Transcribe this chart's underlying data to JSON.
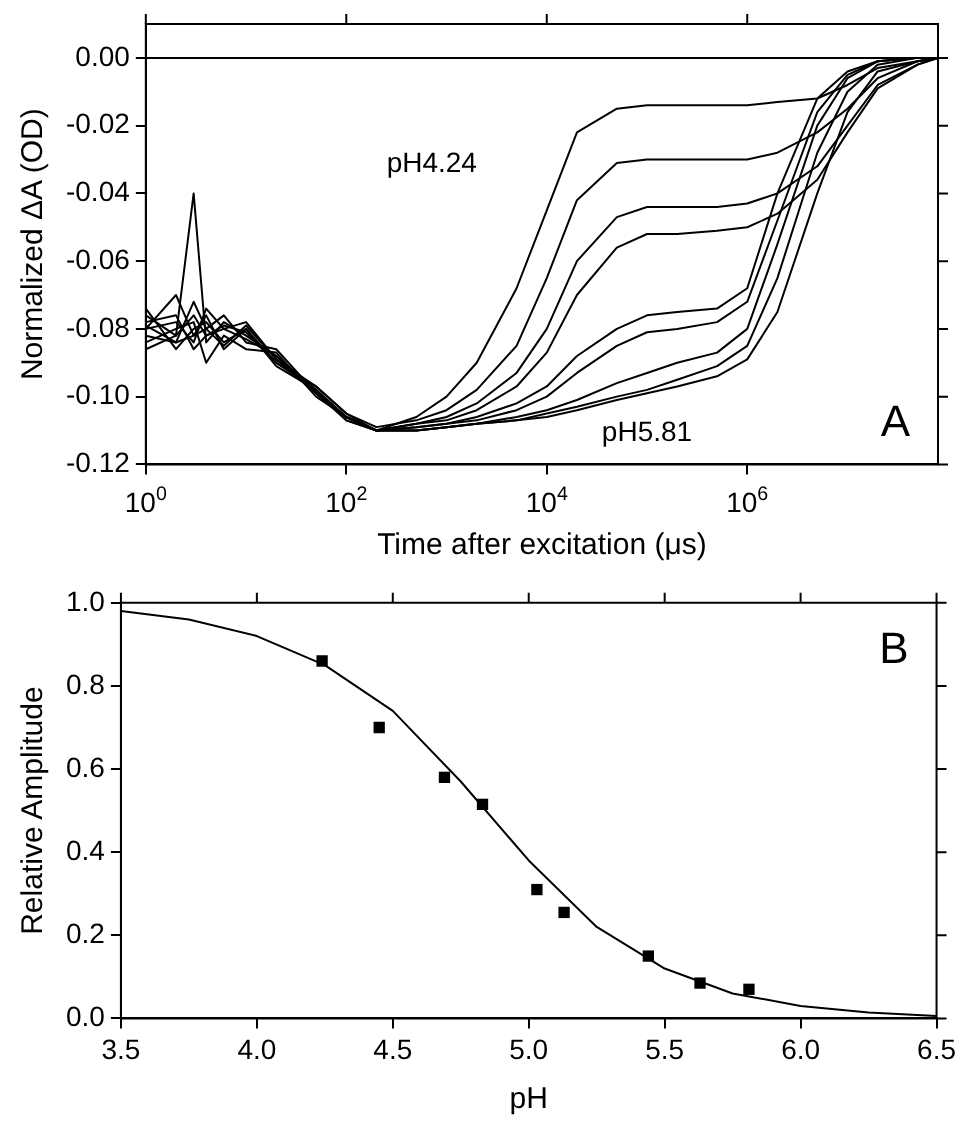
{
  "chart_data": [
    {
      "type": "line",
      "xlabel": "Time after excitation (μs)",
      "ylabel": "Normalized ΔA (OD)",
      "log": "x",
      "xlim": [
        1,
        80000000
      ],
      "xticks": [
        {
          "value": 1,
          "label": "10$^{0}$"
        },
        {
          "value": 100,
          "label": "10$^{2}$"
        },
        {
          "value": 10000,
          "label": "10$^{4}$"
        },
        {
          "value": 1000000,
          "label": "10$^{6}$"
        }
      ],
      "ylim": [
        -0.12,
        0.01
      ],
      "yticks": [
        {
          "value": -0.12,
          "label": "-0.12"
        },
        {
          "value": -0.1,
          "label": "-0.10"
        },
        {
          "value": -0.08,
          "label": "-0.08"
        },
        {
          "value": -0.06,
          "label": "-0.06"
        },
        {
          "value": -0.04,
          "label": "-0.04"
        },
        {
          "value": -0.02,
          "label": "-0.02"
        },
        {
          "value": 0,
          "label": "0.00"
        }
      ],
      "grid": false,
      "legend": false,
      "ref_lines": [
        {
          "axis": "y",
          "value": 0,
          "color": "#000000"
        }
      ],
      "annotations": [
        "A"
      ],
      "x": [
        1,
        2,
        3,
        4,
        6,
        10,
        20,
        50,
        100,
        200,
        500,
        1000,
        2000,
        5000,
        10000,
        20000,
        50000,
        100000,
        200000,
        500000,
        1000000,
        2000000,
        5000000,
        10000000,
        20000000,
        50000000,
        80000000
      ],
      "series": [
        {
          "name": "pH4.24",
          "color": "#000000",
          "values": [
            -0.076,
            -0.082,
            -0.04,
            -0.084,
            -0.078,
            -0.082,
            -0.088,
            -0.098,
            -0.106,
            -0.11,
            -0.106,
            -0.1,
            -0.09,
            -0.068,
            -0.045,
            -0.022,
            -0.015,
            -0.014,
            -0.014,
            -0.014,
            -0.014,
            -0.013,
            -0.012,
            -0.008,
            -0.003,
            -0.001,
            0
          ]
        },
        {
          "color": "#000000",
          "values": [
            -0.08,
            -0.07,
            -0.082,
            -0.076,
            -0.086,
            -0.08,
            -0.09,
            -0.097,
            -0.105,
            -0.109,
            -0.107,
            -0.104,
            -0.098,
            -0.085,
            -0.065,
            -0.042,
            -0.031,
            -0.03,
            -0.03,
            -0.03,
            -0.03,
            -0.028,
            -0.022,
            -0.015,
            -0.006,
            -0.001,
            0
          ]
        },
        {
          "color": "#000000",
          "values": [
            -0.082,
            -0.084,
            -0.072,
            -0.08,
            -0.076,
            -0.084,
            -0.086,
            -0.099,
            -0.106,
            -0.11,
            -0.108,
            -0.106,
            -0.102,
            -0.093,
            -0.08,
            -0.06,
            -0.047,
            -0.044,
            -0.044,
            -0.044,
            -0.043,
            -0.04,
            -0.032,
            -0.02,
            -0.008,
            -0.002,
            0
          ]
        },
        {
          "color": "#000000",
          "values": [
            -0.078,
            -0.076,
            -0.086,
            -0.082,
            -0.08,
            -0.078,
            -0.089,
            -0.097,
            -0.105,
            -0.11,
            -0.108,
            -0.107,
            -0.104,
            -0.097,
            -0.087,
            -0.07,
            -0.056,
            -0.052,
            -0.052,
            -0.051,
            -0.05,
            -0.046,
            -0.036,
            -0.022,
            -0.009,
            -0.002,
            0
          ]
        },
        {
          "color": "#000000",
          "values": [
            -0.084,
            -0.08,
            -0.078,
            -0.09,
            -0.082,
            -0.086,
            -0.087,
            -0.1,
            -0.106,
            -0.11,
            -0.109,
            -0.108,
            -0.106,
            -0.102,
            -0.097,
            -0.088,
            -0.08,
            -0.076,
            -0.075,
            -0.074,
            -0.068,
            -0.04,
            -0.012,
            -0.004,
            -0.001,
            0,
            0
          ]
        },
        {
          "color": "#000000",
          "values": [
            -0.074,
            -0.086,
            -0.08,
            -0.078,
            -0.084,
            -0.08,
            -0.091,
            -0.098,
            -0.107,
            -0.11,
            -0.109,
            -0.108,
            -0.107,
            -0.104,
            -0.1,
            -0.093,
            -0.085,
            -0.081,
            -0.08,
            -0.078,
            -0.072,
            -0.048,
            -0.016,
            -0.005,
            -0.001,
            0,
            0
          ]
        },
        {
          "color": "#000000",
          "values": [
            -0.08,
            -0.078,
            -0.084,
            -0.074,
            -0.08,
            -0.083,
            -0.088,
            -0.099,
            -0.106,
            -0.11,
            -0.11,
            -0.109,
            -0.108,
            -0.106,
            -0.104,
            -0.101,
            -0.096,
            -0.093,
            -0.09,
            -0.087,
            -0.08,
            -0.055,
            -0.02,
            -0.006,
            -0.001,
            0,
            0
          ]
        },
        {
          "color": "#000000",
          "values": [
            -0.086,
            -0.082,
            -0.076,
            -0.082,
            -0.079,
            -0.081,
            -0.09,
            -0.098,
            -0.106,
            -0.11,
            -0.11,
            -0.109,
            -0.108,
            -0.107,
            -0.105,
            -0.103,
            -0.1,
            -0.098,
            -0.095,
            -0.091,
            -0.085,
            -0.065,
            -0.028,
            -0.01,
            -0.002,
            0,
            0
          ]
        },
        {
          "name": "pH5.81",
          "color": "#000000",
          "values": [
            -0.079,
            -0.084,
            -0.082,
            -0.08,
            -0.085,
            -0.079,
            -0.089,
            -0.099,
            -0.107,
            -0.11,
            -0.11,
            -0.109,
            -0.108,
            -0.107,
            -0.106,
            -0.104,
            -0.101,
            -0.099,
            -0.097,
            -0.094,
            -0.089,
            -0.075,
            -0.04,
            -0.016,
            -0.004,
            -0.001,
            0
          ]
        }
      ]
    },
    {
      "type": "scatter",
      "xlabel": "pH",
      "ylabel": "Relative Amplitude",
      "xlim": [
        3.5,
        6.5
      ],
      "xticks": [
        3.5,
        {
          "value": 4,
          "label": "4.0"
        },
        4.5,
        {
          "value": 5,
          "label": "5.0"
        },
        5.5,
        {
          "value": 6,
          "label": "6.0"
        },
        6.5
      ],
      "ylim": [
        0,
        1
      ],
      "yticks": [
        {
          "value": 0,
          "label": "0.0"
        },
        0.2,
        0.4,
        0.6,
        0.8,
        {
          "value": 1,
          "label": "1.0"
        }
      ],
      "grid": false,
      "legend": false,
      "marker": "square",
      "annotations": [
        "B"
      ],
      "series": [
        {
          "type": "scatter",
          "color": "#000000",
          "x": [
            4.24,
            4.45,
            4.69,
            4.83,
            5.03,
            5.13,
            5.44,
            5.63,
            5.81
          ],
          "values": [
            0.86,
            0.7,
            0.58,
            0.515,
            0.31,
            0.255,
            0.15,
            0.085,
            0.07
          ]
        },
        {
          "type": "line",
          "color": "#000000",
          "marker": "none",
          "x": [
            3.5,
            3.75,
            4.0,
            4.25,
            4.5,
            4.75,
            5.0,
            5.25,
            5.5,
            5.75,
            6.0,
            6.25,
            6.5
          ],
          "values": [
            0.98,
            0.96,
            0.92,
            0.85,
            0.74,
            0.57,
            0.38,
            0.22,
            0.12,
            0.06,
            0.03,
            0.014,
            0.006
          ]
        }
      ]
    }
  ]
}
